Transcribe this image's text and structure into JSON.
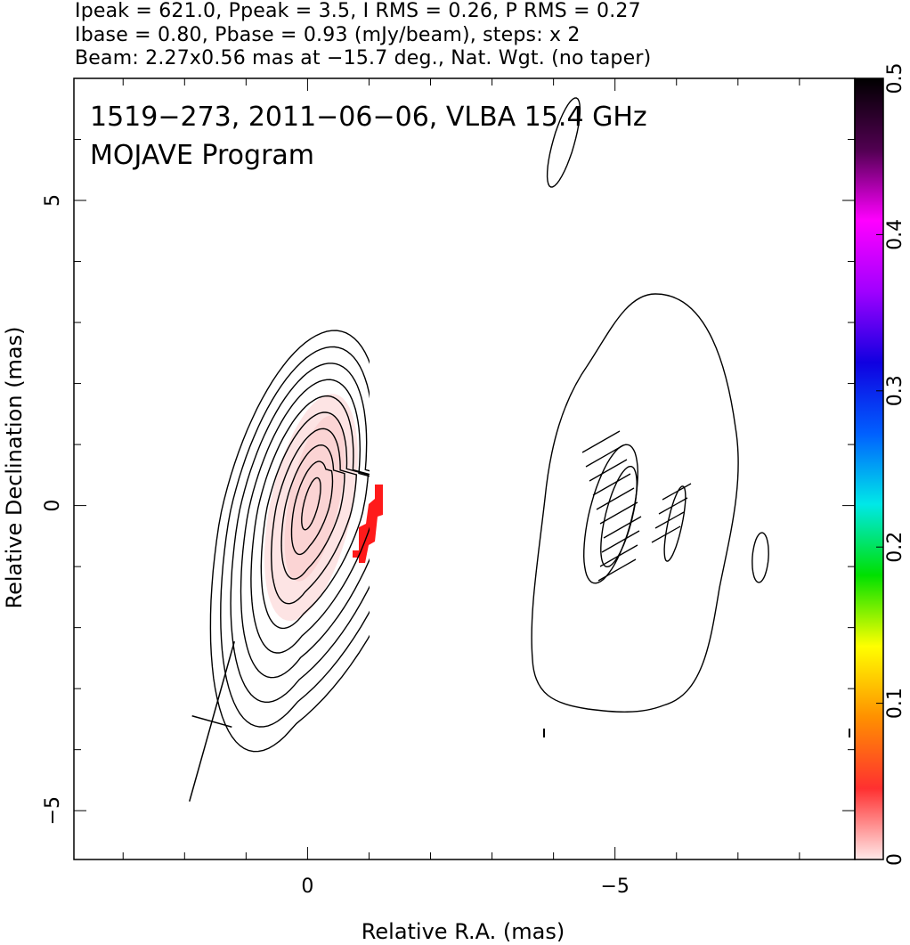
{
  "header": {
    "line1": "Ipeak = 621.0, Ppeak = 3.5, I RMS = 0.26, P RMS = 0.27",
    "line2": "Ibase = 0.80, Pbase = 0.93 (mJy/beam), steps: x 2",
    "line3": "Beam: 2.27x0.56 mas at −15.7 deg., Nat. Wgt. (no taper)"
  },
  "chart_data": {
    "type": "contour",
    "annotation_line1": "1519−273, 2011−06−06, VLBA 15.4 GHz",
    "annotation_line2": "MOJAVE Program",
    "xlabel": "Relative R.A. (mas)",
    "ylabel": "Relative Declination (mas)",
    "xlim": [
      3.8,
      -8.9
    ],
    "ylim": [
      -5.8,
      7.0
    ],
    "x_tick_labels": [
      "0",
      "−5"
    ],
    "x_tick_values": [
      0,
      -5
    ],
    "y_tick_labels": [
      "−5",
      "0",
      "5"
    ],
    "y_tick_values": [
      -5,
      0,
      5
    ],
    "colorbar": {
      "range": [
        0,
        0.5
      ],
      "tick_labels": [
        "0",
        "0.1",
        "0.2",
        "0.3",
        "0.4",
        "0.5"
      ],
      "tick_values": [
        0,
        0.1,
        0.2,
        0.3,
        0.4,
        0.5
      ],
      "colors": [
        "#ffe8e8",
        "#ff3030",
        "#ff9000",
        "#ffff00",
        "#00e000",
        "#00e8e8",
        "#0060ff",
        "#1000e0",
        "#a000ff",
        "#ff00ff",
        "#500050",
        "#000000"
      ]
    },
    "peak_intensity_mJy_per_beam": 621.0,
    "peak_polarized_mJy_per_beam": 3.5,
    "contour_base_mJy_per_beam": 0.8,
    "contour_step_factor": 2,
    "contour_levels_count": 10,
    "core_position": [
      0,
      0
    ],
    "beam": {
      "major_mas": 2.27,
      "minor_mas": 0.56,
      "pa_deg": -15.7
    }
  }
}
